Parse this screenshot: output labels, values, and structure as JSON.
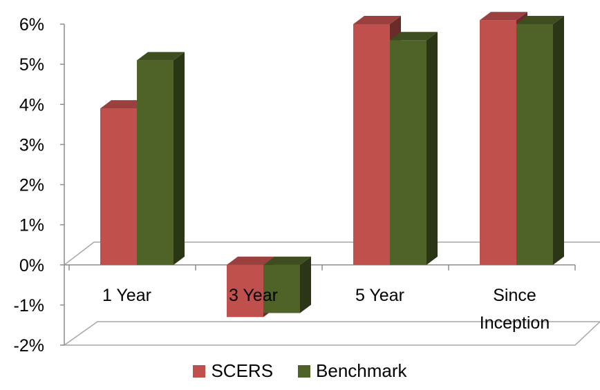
{
  "chart_data": {
    "type": "bar",
    "categories": [
      "1 Year",
      "3 Year",
      "5 Year",
      "Since Inception"
    ],
    "series": [
      {
        "name": "SCERS",
        "values": [
          3.9,
          -1.3,
          6.0,
          6.1
        ],
        "color": "#c0504d"
      },
      {
        "name": "Benchmark",
        "values": [
          5.1,
          -1.2,
          5.6,
          6.0
        ],
        "color": "#4f6228"
      }
    ],
    "yticks": [
      "6%",
      "5%",
      "4%",
      "3%",
      "2%",
      "1%",
      "0%",
      "-1%",
      "-2%"
    ],
    "ylim": [
      -2,
      6
    ],
    "grid": false,
    "legend_position": "bottom",
    "style": "3d clustered column"
  }
}
